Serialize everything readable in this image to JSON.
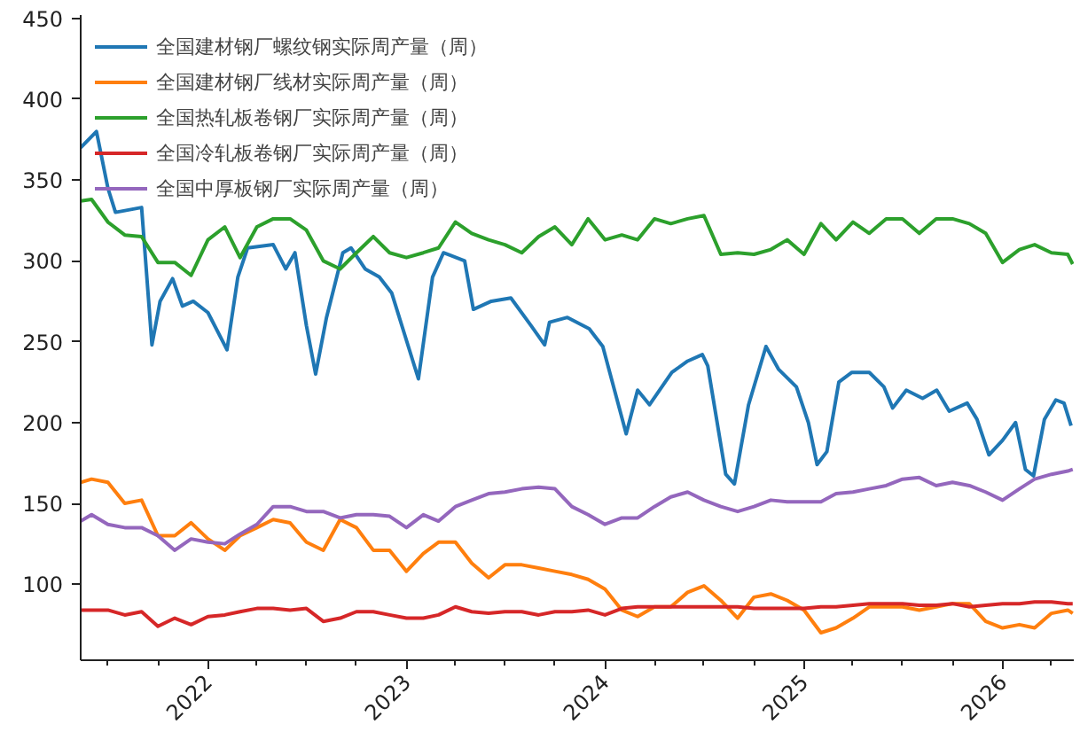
{
  "chart_data": {
    "type": "line",
    "x": [
      "2021-05-12",
      "2021-06-01",
      "2021-07-01",
      "2021-08-01",
      "2021-09-01",
      "2021-10-01",
      "2021-11-01",
      "2021-12-01",
      "2022-01-01",
      "2022-02-01",
      "2022-03-01",
      "2022-04-01",
      "2022-05-01",
      "2022-06-01",
      "2022-07-01",
      "2022-08-01",
      "2022-09-01",
      "2022-10-01",
      "2022-11-01",
      "2022-12-01",
      "2023-01-01",
      "2023-02-01",
      "2023-03-01",
      "2023-04-01",
      "2023-05-01",
      "2023-06-01",
      "2023-07-01",
      "2023-08-01",
      "2023-09-01",
      "2023-10-01",
      "2023-11-01",
      "2023-12-01",
      "2024-01-01",
      "2024-02-01",
      "2024-03-01",
      "2024-04-01",
      "2024-05-01",
      "2024-06-01",
      "2024-07-01",
      "2024-08-01",
      "2024-09-01",
      "2024-10-01",
      "2024-11-01",
      "2024-12-01",
      "2025-01-01",
      "2025-02-01",
      "2025-03-01",
      "2025-04-01",
      "2025-05-01",
      "2025-06-01",
      "2025-07-01",
      "2025-08-01",
      "2025-09-01",
      "2025-10-01",
      "2025-11-01",
      "2025-12-01",
      "2026-01-01",
      "2026-02-01",
      "2026-03-01",
      "2026-04-01",
      "2026-05-01",
      "2026-05-10"
    ],
    "series": [
      {
        "name": "全国建材钢厂螺纹钢实际周产量（周）",
        "color": "#1f77b4",
        "x": [
          "2021-05-12",
          "2021-06-10",
          "2021-07-01",
          "2021-07-15",
          "2021-09-01",
          "2021-09-20",
          "2021-10-05",
          "2021-10-28",
          "2021-11-15",
          "2021-12-05",
          "2022-01-01",
          "2022-02-05",
          "2022-02-25",
          "2022-03-15",
          "2022-05-01",
          "2022-05-24",
          "2022-06-10",
          "2022-07-01",
          "2022-07-18",
          "2022-08-07",
          "2022-09-06",
          "2022-09-21",
          "2022-10-17",
          "2022-11-12",
          "2022-12-05",
          "2023-01-23",
          "2023-02-18",
          "2023-03-10",
          "2023-04-18",
          "2023-05-04",
          "2023-06-06",
          "2023-07-12",
          "2023-08-18",
          "2023-09-12",
          "2023-09-21",
          "2023-10-24",
          "2023-12-03",
          "2023-12-28",
          "2024-02-09",
          "2024-03-01",
          "2024-03-23",
          "2024-05-03",
          "2024-06-01",
          "2024-06-28",
          "2024-07-08",
          "2024-08-10",
          "2024-08-26",
          "2024-09-21",
          "2024-10-23",
          "2024-11-15",
          "2024-12-18",
          "2025-01-09",
          "2025-01-25",
          "2025-02-12",
          "2025-03-06",
          "2025-03-30",
          "2025-05-01",
          "2025-05-28",
          "2025-06-13",
          "2025-07-08",
          "2025-08-07",
          "2025-09-02",
          "2025-09-25",
          "2025-10-28",
          "2025-11-15",
          "2025-12-07",
          "2026-01-01",
          "2026-01-25",
          "2026-02-12",
          "2026-02-27",
          "2026-03-19",
          "2026-04-09",
          "2026-04-24",
          "2026-05-07"
        ],
        "values": [
          370,
          380,
          345,
          330,
          333,
          248,
          275,
          289,
          272,
          275,
          268,
          245,
          290,
          308,
          310,
          295,
          305,
          260,
          230,
          265,
          305,
          308,
          295,
          290,
          280,
          227,
          290,
          305,
          300,
          270,
          275,
          277,
          260,
          248,
          262,
          265,
          258,
          247,
          193,
          220,
          211,
          231,
          238,
          242,
          235,
          168,
          162,
          211,
          247,
          233,
          222,
          200,
          174,
          182,
          225,
          231,
          231,
          222,
          209,
          220,
          215,
          220,
          207,
          212,
          202,
          180,
          189,
          200,
          171,
          167,
          202,
          214,
          212,
          198
        ]
      },
      {
        "name": "全国建材钢厂线材实际周产量（周）",
        "color": "#ff7f0e",
        "values": [
          163,
          165,
          163,
          150,
          152,
          130,
          130,
          138,
          128,
          121,
          130,
          135,
          140,
          138,
          126,
          121,
          140,
          135,
          121,
          121,
          108,
          119,
          126,
          126,
          113,
          104,
          112,
          112,
          110,
          108,
          106,
          103,
          97,
          84,
          80,
          86,
          86,
          95,
          99,
          90,
          79,
          92,
          94,
          90,
          84,
          70,
          73,
          79,
          86,
          86,
          86,
          84,
          86,
          88,
          88,
          77,
          73,
          75,
          73,
          82,
          84,
          82
        ]
      },
      {
        "name": "全国热轧板卷钢厂实际周产量（周）",
        "color": "#2ca02c",
        "values": [
          337,
          338,
          324,
          316,
          315,
          299,
          299,
          291,
          313,
          321,
          302,
          321,
          326,
          326,
          319,
          300,
          295,
          305,
          315,
          305,
          302,
          305,
          308,
          324,
          317,
          313,
          310,
          305,
          315,
          321,
          310,
          326,
          313,
          316,
          313,
          326,
          323,
          326,
          328,
          304,
          305,
          304,
          307,
          313,
          304,
          323,
          313,
          324,
          317,
          326,
          326,
          317,
          326,
          326,
          323,
          317,
          299,
          307,
          310,
          305,
          304,
          298
        ]
      },
      {
        "name": "全国冷轧板卷钢厂实际周产量（周）",
        "color": "#d62728",
        "values": [
          84,
          84,
          84,
          81,
          83,
          74,
          79,
          75,
          80,
          81,
          83,
          85,
          85,
          84,
          85,
          77,
          79,
          83,
          83,
          81,
          79,
          79,
          81,
          86,
          83,
          82,
          83,
          83,
          81,
          83,
          83,
          84,
          81,
          85,
          86,
          86,
          86,
          86,
          86,
          86,
          86,
          85,
          85,
          85,
          85,
          86,
          86,
          87,
          88,
          88,
          88,
          87,
          87,
          88,
          86,
          87,
          88,
          88,
          89,
          89,
          88,
          88
        ]
      },
      {
        "name": "全国中厚板钢厂实际周产量（周）",
        "color": "#9467bd",
        "values": [
          139,
          143,
          137,
          135,
          135,
          130,
          121,
          128,
          126,
          125,
          131,
          137,
          148,
          148,
          145,
          145,
          141,
          143,
          143,
          142,
          135,
          143,
          139,
          148,
          152,
          156,
          157,
          159,
          160,
          159,
          148,
          143,
          137,
          141,
          141,
          148,
          154,
          157,
          152,
          148,
          145,
          148,
          152,
          151,
          151,
          151,
          156,
          157,
          159,
          161,
          165,
          166,
          161,
          163,
          161,
          157,
          152,
          159,
          165,
          168,
          170,
          171
        ]
      }
    ],
    "xlim": [
      "2021-05-12",
      "2026-05-12"
    ],
    "xticks": [
      {
        "value": "2021-07-01",
        "label": null
      },
      {
        "value": "2021-10-01",
        "label": null
      },
      {
        "value": "2022-01-01",
        "label": "2022"
      },
      {
        "value": "2022-04-01",
        "label": null
      },
      {
        "value": "2022-07-01",
        "label": null
      },
      {
        "value": "2022-10-01",
        "label": null
      },
      {
        "value": "2023-01-01",
        "label": "2023"
      },
      {
        "value": "2023-04-01",
        "label": null
      },
      {
        "value": "2023-07-01",
        "label": null
      },
      {
        "value": "2023-10-01",
        "label": null
      },
      {
        "value": "2024-01-01",
        "label": "2024"
      },
      {
        "value": "2024-04-01",
        "label": null
      },
      {
        "value": "2024-07-01",
        "label": null
      },
      {
        "value": "2024-10-01",
        "label": null
      },
      {
        "value": "2025-01-01",
        "label": "2025"
      },
      {
        "value": "2025-04-01",
        "label": null
      },
      {
        "value": "2025-07-01",
        "label": null
      },
      {
        "value": "2025-10-01",
        "label": null
      },
      {
        "value": "2026-01-01",
        "label": "2026"
      },
      {
        "value": "2026-04-01",
        "label": null
      }
    ],
    "ylim": [
      53,
      452
    ],
    "yticks": [
      100,
      150,
      200,
      250,
      300,
      350,
      400,
      450
    ],
    "grid": false,
    "legend": "top left",
    "marker": "none",
    "line_style": "solid"
  }
}
